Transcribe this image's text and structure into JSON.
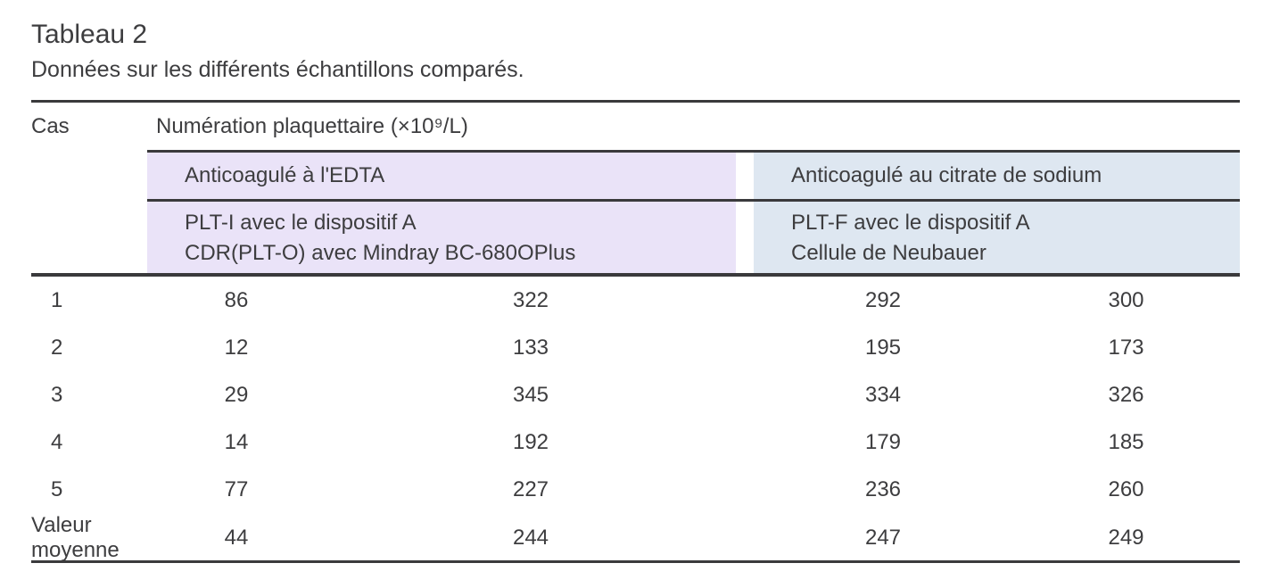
{
  "table": {
    "label": "Tableau 2",
    "caption": "Données sur les différents échantillons comparés.",
    "columns": {
      "cas": "Cas",
      "group_title": "Numération plaquettaire (×10⁹/L)",
      "group_edta": {
        "anticoagulant": "Anticoagulé à l'EDTA",
        "method_line1": "PLT-I avec le dispositif A",
        "method_line2": "CDR(PLT-O) avec Mindray BC-680OPlus"
      },
      "group_citrate": {
        "anticoagulant": "Anticoagulé au citrate de sodium",
        "method_line1": "PLT-F avec le dispositif A",
        "method_line2": "Cellule de Neubauer"
      }
    },
    "rows": [
      {
        "cas": "1",
        "plt_i": "86",
        "cdr_plt_o": "322",
        "plt_f": "292",
        "neubauer": "300"
      },
      {
        "cas": "2",
        "plt_i": "12",
        "cdr_plt_o": "133",
        "plt_f": "195",
        "neubauer": "173"
      },
      {
        "cas": "3",
        "plt_i": "29",
        "cdr_plt_o": "345",
        "plt_f": "334",
        "neubauer": "326"
      },
      {
        "cas": "4",
        "plt_i": "14",
        "cdr_plt_o": "192",
        "plt_f": "179",
        "neubauer": "185"
      },
      {
        "cas": "5",
        "plt_i": "77",
        "cdr_plt_o": "227",
        "plt_f": "236",
        "neubauer": "260"
      },
      {
        "cas": "Valeur moyenne",
        "plt_i": "44",
        "cdr_plt_o": "244",
        "plt_f": "247",
        "neubauer": "249"
      }
    ]
  },
  "colors": {
    "edta_header_bg": "#EAE3F8",
    "citrate_header_bg": "#DEE7F1",
    "rule": "#3A3A3C",
    "text": "#3D3D3F"
  }
}
